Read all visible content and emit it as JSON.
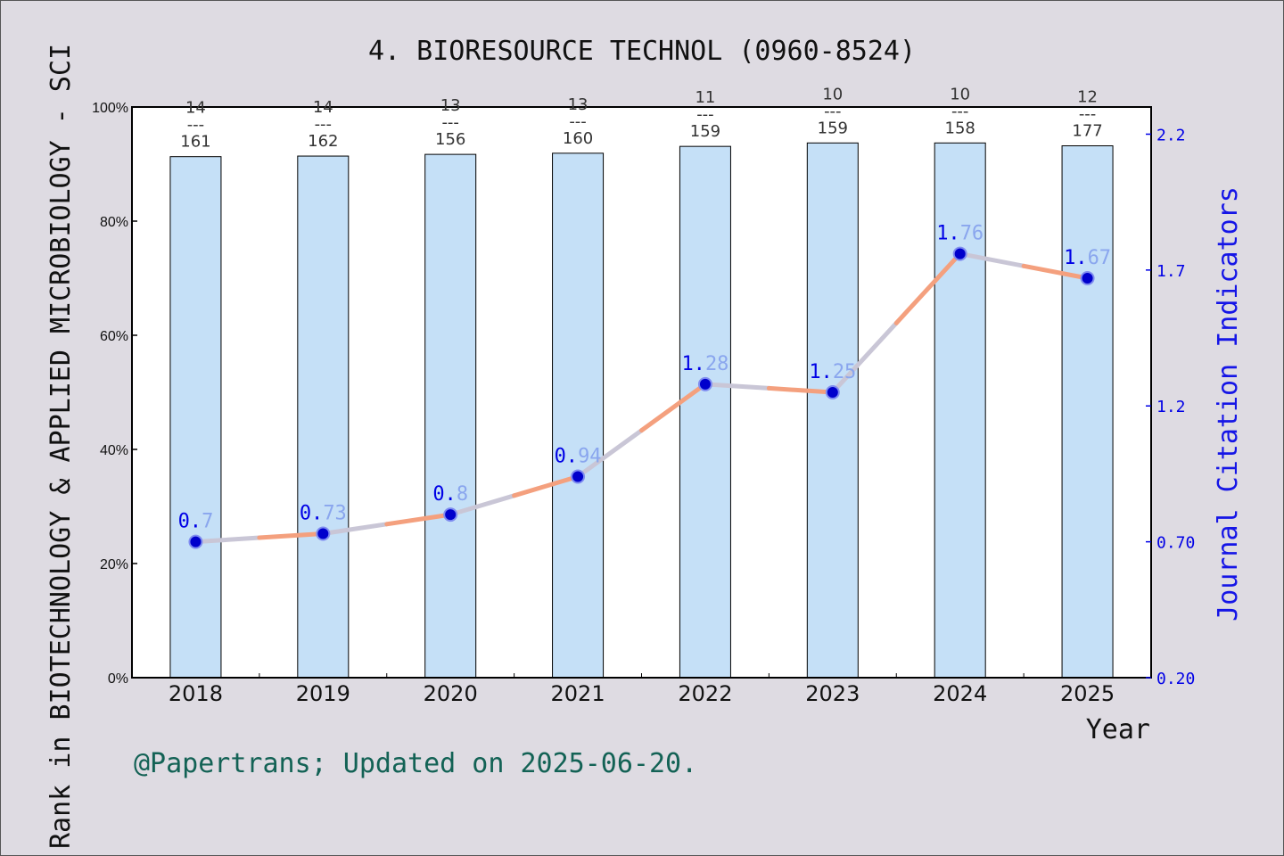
{
  "chart_data": {
    "type": "bar",
    "title": "4. BIORESOURCE TECHNOL (0960-8524)",
    "ylabel": "Rank in BIOTECHNOLOGY & APPLIED MICROBIOLOGY - SCI",
    "y2label": "Journal Citation Indicators",
    "xlabel": "Year",
    "categories": [
      "2018",
      "2019",
      "2020",
      "2021",
      "2022",
      "2023",
      "2024",
      "2025"
    ],
    "ylim": [
      0,
      100
    ],
    "y_ticks": [
      "0%",
      "20%",
      "40%",
      "60%",
      "80%",
      "100%"
    ],
    "y2lim": [
      0.2,
      2.3
    ],
    "y2_ticks": [
      "0.20",
      "0.70",
      "1.2",
      "1.7",
      "2.2"
    ],
    "grid": false,
    "series": [
      {
        "type": "bar",
        "values": [
          91.3,
          91.4,
          91.7,
          91.9,
          93.1,
          93.7,
          93.7,
          93.2
        ],
        "rank": [
          14,
          14,
          13,
          13,
          11,
          10,
          10,
          12
        ],
        "total": [
          161,
          162,
          156,
          160,
          159,
          159,
          158,
          177
        ],
        "color": "#c5e0f7"
      },
      {
        "type": "line",
        "values": [
          0.7,
          0.73,
          0.8,
          0.94,
          1.28,
          1.25,
          1.76,
          1.67
        ],
        "labels": [
          "0.7",
          "0.73",
          "0.8",
          "0.94",
          "1.28",
          "1.25",
          "1.76",
          "1.67"
        ],
        "color": "#f4a07e",
        "marker_color": "#0000cc"
      }
    ]
  },
  "footer": "@Papertrans; Updated on 2025-06-20."
}
